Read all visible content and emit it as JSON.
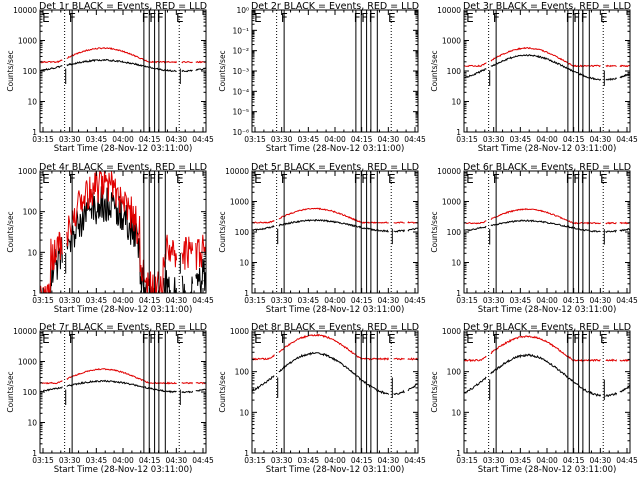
{
  "figure": {
    "background": "#ffffff",
    "events_color": "#000000",
    "lld_color": "#e00000"
  },
  "chart_data": [
    {
      "id": "det1r",
      "type": "line",
      "title": "Det 1r BLACK = Events, RED = LLD",
      "xlabel": "Start Time (28-Nov-12 03:11:00)",
      "ylabel": "Counts/sec",
      "yscale": "log",
      "ylim": [
        1,
        10000
      ],
      "yticks": [
        {
          "v": 1,
          "t": "1"
        },
        {
          "v": 10,
          "t": "10"
        },
        {
          "v": 100,
          "t": "100"
        },
        {
          "v": 1000,
          "t": "1000"
        },
        {
          "v": 10000,
          "t": "10000"
        }
      ],
      "xlim": [
        3.25,
        4.8
      ],
      "xticks": [
        "03:15",
        "03:30",
        "03:45",
        "04:00",
        "04:15",
        "04:30",
        "04:45"
      ],
      "profile": "standard",
      "base_lld": 250,
      "amp_lld": 0.35,
      "base_evt": 150,
      "amp_evt": 0.18,
      "dotted_lines": [
        3.48,
        4.55
      ],
      "solid_lines": [
        3.55,
        4.22,
        4.27,
        4.32,
        4.36,
        4.42
      ],
      "flags": [
        {
          "x": 3.27,
          "t": "E"
        },
        {
          "x": 3.52,
          "t": "F"
        },
        {
          "x": 4.2,
          "t": "F"
        },
        {
          "x": 4.27,
          "t": "F"
        },
        {
          "x": 4.34,
          "t": "F"
        },
        {
          "x": 4.52,
          "t": "E"
        }
      ]
    },
    {
      "id": "det2r",
      "type": "line",
      "title": "Det 2r BLACK = Events, RED = LLD",
      "xlabel": "Start Time (28-Nov-12 03:11:00)",
      "ylabel": "Counts/sec",
      "yscale": "log",
      "ylim": [
        1e-06,
        1
      ],
      "yticks": [
        {
          "v": 1e-06,
          "t": "10⁻⁶"
        },
        {
          "v": 1e-05,
          "t": "10⁻⁵"
        },
        {
          "v": 0.0001,
          "t": "10⁻⁴"
        },
        {
          "v": 0.001,
          "t": "10⁻³"
        },
        {
          "v": 0.01,
          "t": "10⁻²"
        },
        {
          "v": 0.1,
          "t": "10⁻¹"
        },
        {
          "v": 1,
          "t": "10⁰"
        }
      ],
      "xlim": [
        3.25,
        4.8
      ],
      "xticks": [
        "03:15",
        "03:30",
        "03:45",
        "04:00",
        "04:15",
        "04:30",
        "04:45"
      ],
      "profile": "none",
      "base_lld": 0,
      "amp_lld": 0,
      "base_evt": 0,
      "amp_evt": 0,
      "dotted_lines": [
        3.48,
        4.55
      ],
      "solid_lines": [
        3.55,
        4.22,
        4.27,
        4.32,
        4.36,
        4.42
      ],
      "flags": [
        {
          "x": 3.27,
          "t": "E"
        },
        {
          "x": 3.52,
          "t": "F"
        },
        {
          "x": 4.2,
          "t": "F"
        },
        {
          "x": 4.27,
          "t": "F"
        },
        {
          "x": 4.34,
          "t": "F"
        },
        {
          "x": 4.52,
          "t": "E"
        }
      ]
    },
    {
      "id": "det3r",
      "type": "line",
      "title": "Det 3r BLACK = Events, RED = LLD",
      "xlabel": "Start Time (28-Nov-12 03:11:00)",
      "ylabel": "Counts/sec",
      "yscale": "log",
      "ylim": [
        1,
        10000
      ],
      "yticks": [
        {
          "v": 1,
          "t": "1"
        },
        {
          "v": 10,
          "t": "10"
        },
        {
          "v": 100,
          "t": "100"
        },
        {
          "v": 1000,
          "t": "1000"
        },
        {
          "v": 10000,
          "t": "10000"
        }
      ],
      "xlim": [
        3.25,
        4.8
      ],
      "xticks": [
        "03:15",
        "03:30",
        "03:45",
        "04:00",
        "04:15",
        "04:30",
        "04:45"
      ],
      "profile": "standard",
      "base_lld": 200,
      "amp_lld": 0.45,
      "base_evt": 130,
      "amp_evt": 0.4,
      "dotted_lines": [
        3.48,
        4.55
      ],
      "solid_lines": [
        3.55,
        4.22,
        4.27,
        4.32,
        4.36,
        4.42
      ],
      "flags": [
        {
          "x": 3.27,
          "t": "E"
        },
        {
          "x": 3.52,
          "t": "F"
        },
        {
          "x": 4.2,
          "t": "F"
        },
        {
          "x": 4.27,
          "t": "F"
        },
        {
          "x": 4.34,
          "t": "F"
        },
        {
          "x": 4.52,
          "t": "E"
        }
      ]
    },
    {
      "id": "det4r",
      "type": "line",
      "title": "Det 4r BLACK = Events, RED = LLD",
      "xlabel": "Start Time (28-Nov-12 03:11:00)",
      "ylabel": "Counts/sec",
      "yscale": "log",
      "ylim": [
        1,
        1000
      ],
      "yticks": [
        {
          "v": 1,
          "t": "1"
        },
        {
          "v": 10,
          "t": "10"
        },
        {
          "v": 100,
          "t": "100"
        },
        {
          "v": 1000,
          "t": "1000"
        }
      ],
      "xlim": [
        3.25,
        4.8
      ],
      "xticks": [
        "03:15",
        "03:30",
        "03:45",
        "04:00",
        "04:15",
        "04:30",
        "04:45"
      ],
      "profile": "noisy",
      "base_lld": 25,
      "amp_lld": 1.3,
      "base_evt": 12,
      "amp_evt": 1.1,
      "dotted_lines": [
        3.48,
        4.55
      ],
      "solid_lines": [
        3.55,
        4.22,
        4.27,
        4.32,
        4.36,
        4.42
      ],
      "flags": [
        {
          "x": 3.27,
          "t": "E"
        },
        {
          "x": 3.52,
          "t": "F"
        },
        {
          "x": 4.2,
          "t": "F"
        },
        {
          "x": 4.27,
          "t": "F"
        },
        {
          "x": 4.34,
          "t": "F"
        },
        {
          "x": 4.52,
          "t": "E"
        }
      ]
    },
    {
      "id": "det5r",
      "type": "line",
      "title": "Det 5r BLACK = Events, RED = LLD",
      "xlabel": "Start Time (28-Nov-12 03:11:00)",
      "ylabel": "Counts/sec",
      "yscale": "log",
      "ylim": [
        1,
        10000
      ],
      "yticks": [
        {
          "v": 1,
          "t": "1"
        },
        {
          "v": 10,
          "t": "10"
        },
        {
          "v": 100,
          "t": "100"
        },
        {
          "v": 1000,
          "t": "1000"
        },
        {
          "v": 10000,
          "t": "10000"
        }
      ],
      "xlim": [
        3.25,
        4.8
      ],
      "xticks": [
        "03:15",
        "03:30",
        "03:45",
        "04:00",
        "04:15",
        "04:30",
        "04:45"
      ],
      "profile": "standard",
      "base_lld": 260,
      "amp_lld": 0.35,
      "base_evt": 160,
      "amp_evt": 0.18,
      "dotted_lines": [
        3.48,
        4.55
      ],
      "solid_lines": [
        3.55,
        4.22,
        4.27,
        4.32,
        4.36,
        4.42
      ],
      "flags": [
        {
          "x": 3.27,
          "t": "E"
        },
        {
          "x": 3.52,
          "t": "F"
        },
        {
          "x": 4.2,
          "t": "F"
        },
        {
          "x": 4.27,
          "t": "F"
        },
        {
          "x": 4.34,
          "t": "F"
        },
        {
          "x": 4.52,
          "t": "E"
        }
      ]
    },
    {
      "id": "det6r",
      "type": "line",
      "title": "Det 6r BLACK = Events, RED = LLD",
      "xlabel": "Start Time (28-Nov-12 03:11:00)",
      "ylabel": "Counts/sec",
      "yscale": "log",
      "ylim": [
        1,
        10000
      ],
      "yticks": [
        {
          "v": 1,
          "t": "1"
        },
        {
          "v": 10,
          "t": "10"
        },
        {
          "v": 100,
          "t": "100"
        },
        {
          "v": 1000,
          "t": "1000"
        },
        {
          "v": 10000,
          "t": "10000"
        }
      ],
      "xlim": [
        3.25,
        4.8
      ],
      "xticks": [
        "03:15",
        "03:30",
        "03:45",
        "04:00",
        "04:15",
        "04:30",
        "04:45"
      ],
      "profile": "standard",
      "base_lld": 250,
      "amp_lld": 0.35,
      "base_evt": 155,
      "amp_evt": 0.18,
      "dotted_lines": [
        3.48,
        4.55
      ],
      "solid_lines": [
        3.55,
        4.22,
        4.27,
        4.32,
        4.36,
        4.42
      ],
      "flags": [
        {
          "x": 3.27,
          "t": "E"
        },
        {
          "x": 3.52,
          "t": "F"
        },
        {
          "x": 4.2,
          "t": "F"
        },
        {
          "x": 4.27,
          "t": "F"
        },
        {
          "x": 4.34,
          "t": "F"
        },
        {
          "x": 4.52,
          "t": "E"
        }
      ]
    },
    {
      "id": "det7r",
      "type": "line",
      "title": "Det 7r BLACK = Events, RED = LLD",
      "xlabel": "Start Time (28-Nov-12 03:11:00)",
      "ylabel": "Counts/sec",
      "yscale": "log",
      "ylim": [
        1,
        10000
      ],
      "yticks": [
        {
          "v": 1,
          "t": "1"
        },
        {
          "v": 10,
          "t": "10"
        },
        {
          "v": 100,
          "t": "100"
        },
        {
          "v": 1000,
          "t": "1000"
        },
        {
          "v": 10000,
          "t": "10000"
        }
      ],
      "xlim": [
        3.25,
        4.8
      ],
      "xticks": [
        "03:15",
        "03:30",
        "03:45",
        "04:00",
        "04:15",
        "04:30",
        "04:45"
      ],
      "profile": "standard",
      "base_lld": 250,
      "amp_lld": 0.35,
      "base_evt": 150,
      "amp_evt": 0.18,
      "dotted_lines": [
        3.48,
        4.55
      ],
      "solid_lines": [
        3.55,
        4.22,
        4.27,
        4.32,
        4.36,
        4.42
      ],
      "flags": [
        {
          "x": 3.27,
          "t": "E"
        },
        {
          "x": 3.52,
          "t": "F"
        },
        {
          "x": 4.2,
          "t": "F"
        },
        {
          "x": 4.27,
          "t": "F"
        },
        {
          "x": 4.34,
          "t": "F"
        },
        {
          "x": 4.52,
          "t": "E"
        }
      ]
    },
    {
      "id": "det8r",
      "type": "line",
      "title": "Det 8r BLACK = Events, RED = LLD",
      "xlabel": "Start Time (28-Nov-12 03:11:00)",
      "ylabel": "Counts/sec",
      "yscale": "log",
      "ylim": [
        1,
        1000
      ],
      "yticks": [
        {
          "v": 1,
          "t": "1"
        },
        {
          "v": 10,
          "t": "10"
        },
        {
          "v": 100,
          "t": "100"
        },
        {
          "v": 1000,
          "t": "1000"
        }
      ],
      "xlim": [
        3.25,
        4.8
      ],
      "xticks": [
        "03:15",
        "03:30",
        "03:45",
        "04:00",
        "04:15",
        "04:30",
        "04:45"
      ],
      "profile": "standard",
      "base_lld": 280,
      "amp_lld": 0.45,
      "base_evt": 90,
      "amp_evt": 0.5,
      "dotted_lines": [
        3.48,
        4.55
      ],
      "solid_lines": [
        3.55,
        4.22,
        4.27,
        4.32,
        4.36,
        4.42
      ],
      "flags": [
        {
          "x": 3.27,
          "t": "E"
        },
        {
          "x": 3.52,
          "t": "F"
        },
        {
          "x": 4.2,
          "t": "F"
        },
        {
          "x": 4.27,
          "t": "F"
        },
        {
          "x": 4.34,
          "t": "F"
        },
        {
          "x": 4.52,
          "t": "E"
        }
      ]
    },
    {
      "id": "det9r",
      "type": "line",
      "title": "Det 9r BLACK = Events, RED = LLD",
      "xlabel": "Start Time (28-Nov-12 03:11:00)",
      "ylabel": "Counts/sec",
      "yscale": "log",
      "ylim": [
        1,
        1000
      ],
      "yticks": [
        {
          "v": 1,
          "t": "1"
        },
        {
          "v": 10,
          "t": "10"
        },
        {
          "v": 100,
          "t": "100"
        },
        {
          "v": 1000,
          "t": "1000"
        }
      ],
      "xlim": [
        3.25,
        4.8
      ],
      "xticks": [
        "03:15",
        "03:30",
        "03:45",
        "04:00",
        "04:15",
        "04:30",
        "04:45"
      ],
      "profile": "standard",
      "base_lld": 260,
      "amp_lld": 0.45,
      "base_evt": 80,
      "amp_evt": 0.5,
      "dotted_lines": [
        3.48,
        4.55
      ],
      "solid_lines": [
        3.55,
        4.22,
        4.27,
        4.32,
        4.36,
        4.42
      ],
      "flags": [
        {
          "x": 3.27,
          "t": "E"
        },
        {
          "x": 3.52,
          "t": "F"
        },
        {
          "x": 4.2,
          "t": "F"
        },
        {
          "x": 4.27,
          "t": "F"
        },
        {
          "x": 4.34,
          "t": "F"
        },
        {
          "x": 4.52,
          "t": "E"
        }
      ]
    }
  ]
}
